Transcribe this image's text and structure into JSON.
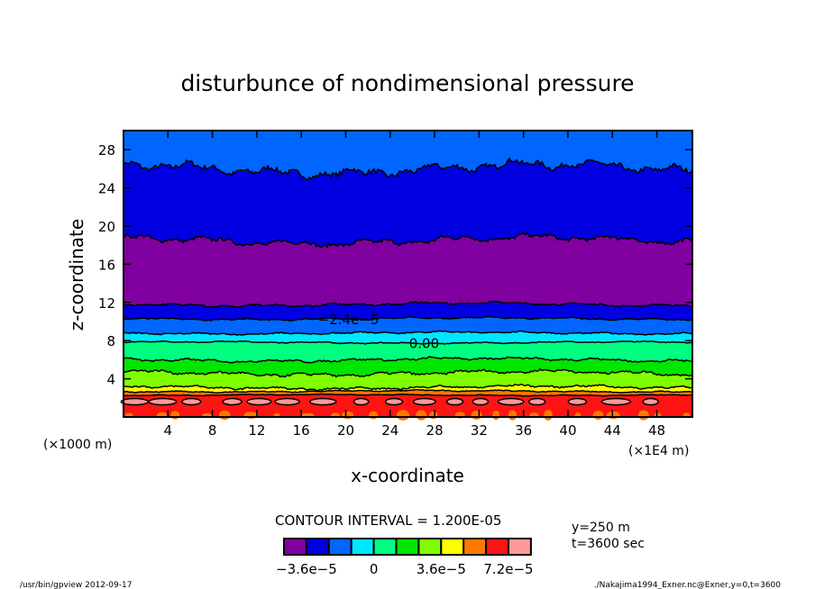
{
  "chart_data": {
    "type": "contour",
    "title": "disturbunce of nondimensional pressure",
    "xlabel": "x-coordinate",
    "ylabel": "z-coordinate",
    "x_unit_note": "(×1E4 m)",
    "y_unit_note": "(×1000 m)",
    "xlim": [
      0,
      51.2
    ],
    "ylim": [
      0,
      30
    ],
    "xticks": [
      4,
      8,
      12,
      16,
      20,
      24,
      28,
      32,
      36,
      40,
      44,
      48
    ],
    "yticks": [
      4,
      8,
      12,
      16,
      20,
      24,
      28
    ],
    "contour_interval": "CONTOUR INTERVAL = 1.200E-05",
    "levels": [
      -3.6e-05,
      -2.4e-05,
      -1.2e-05,
      0,
      1.2e-05,
      2.4e-05,
      3.6e-05,
      4.8e-05,
      6e-05,
      7.2e-05
    ],
    "colors": [
      "#8000a0",
      "#0000e0",
      "#0066ff",
      "#00e6ff",
      "#00ff80",
      "#00e600",
      "#80ff00",
      "#ffff00",
      "#ff7800",
      "#ff1414",
      "#ff9999"
    ],
    "colorbar_labels": [
      {
        "text": "−3.6e−5",
        "level": -3.6e-05
      },
      {
        "text": "0",
        "level": 0
      },
      {
        "text": "3.6e−5",
        "level": 3.6e-05
      },
      {
        "text": "7.2e−5",
        "level": 7.2e-05
      }
    ],
    "top_color_index": 2,
    "boundaries": [
      {
        "z": 26.0,
        "amp": 1.0,
        "below": 1
      },
      {
        "z": 18.5,
        "amp": 0.7,
        "below": 0
      },
      {
        "z": 11.8,
        "amp": 0.3,
        "below": 1
      },
      {
        "z": 10.3,
        "amp": 0.2,
        "below": 2
      },
      {
        "z": 8.8,
        "amp": 0.2,
        "below": 3
      },
      {
        "z": 7.8,
        "amp": 0.15,
        "below": 4
      },
      {
        "z": 6.0,
        "amp": 0.3,
        "below": 5
      },
      {
        "z": 4.6,
        "amp": 0.4,
        "below": 6
      },
      {
        "z": 3.1,
        "amp": 0.3,
        "below": 7
      },
      {
        "z": 2.7,
        "amp": 0.15,
        "below": 8
      },
      {
        "z": 2.3,
        "amp": 0.1,
        "below": 9
      }
    ],
    "contour_labels": [
      {
        "text": "−2.4e−5",
        "x": 17.5,
        "z": 10.3
      },
      {
        "text": "0.00",
        "x": 25.7,
        "z": 7.8
      }
    ]
  },
  "info": {
    "y_value": "y=250 m",
    "t_value": "t=3600 sec"
  },
  "footer": {
    "left": "/usr/bin/gpview  2012-09-17",
    "right": "./Nakajima1994_Exner.nc@Exner,y=0,t=3600"
  }
}
